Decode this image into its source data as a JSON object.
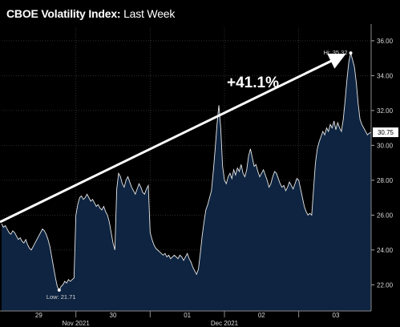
{
  "chart_data": {
    "type": "area",
    "title_main": "CBOE Volatility Index:",
    "title_sub": "Last Week",
    "ylim": [
      20.5,
      36.5
    ],
    "yticks": [
      "22.00",
      "24.00",
      "26.00",
      "28.00",
      "30.00",
      "32.00",
      "34.00",
      "36.00"
    ],
    "day_ticks": [
      "29",
      "30",
      "01",
      "02",
      "03"
    ],
    "month_labels": [
      "Nov 2021",
      "Dec 2021"
    ],
    "last_value": "30.75",
    "high_label": "Hi: 35.32",
    "low_label": "Low: 21.71",
    "change_annotation": "+41.1%",
    "series": [
      {
        "values": [
          25.5,
          25.3,
          25.4,
          25.2,
          25.0,
          24.9,
          25.1,
          25.0,
          24.8,
          24.6,
          24.7,
          24.5,
          24.4,
          24.6,
          24.3,
          24.1,
          24.0,
          24.2,
          24.4,
          24.6,
          24.8,
          25.0,
          25.2,
          25.1,
          24.9,
          24.6,
          24.2,
          23.6,
          23.0,
          22.4,
          21.9,
          21.7,
          21.9,
          22.0,
          22.2,
          22.1,
          22.3,
          22.2,
          22.3,
          22.4,
          26.0,
          26.6,
          27.0,
          27.1,
          26.9,
          27.0,
          27.2,
          27.0,
          26.8,
          26.9,
          26.7,
          26.5,
          26.6,
          26.4,
          26.3,
          26.5,
          26.2,
          26.0,
          25.6,
          25.0,
          24.4,
          24.0,
          27.5,
          28.4,
          28.2,
          27.8,
          27.6,
          28.0,
          28.2,
          27.9,
          27.6,
          27.4,
          27.2,
          27.5,
          27.8,
          27.6,
          27.3,
          27.2,
          27.5,
          27.7,
          25.0,
          24.6,
          24.3,
          24.1,
          24.0,
          23.9,
          23.8,
          23.7,
          23.8,
          23.6,
          23.7,
          23.5,
          23.6,
          23.7,
          23.6,
          23.5,
          23.7,
          23.6,
          23.4,
          23.6,
          23.8,
          23.5,
          23.3,
          23.0,
          22.8,
          22.6,
          22.9,
          23.8,
          24.8,
          25.6,
          26.3,
          26.6,
          27.0,
          27.4,
          28.5,
          29.8,
          31.2,
          32.3,
          31.0,
          28.8,
          28.0,
          27.8,
          28.2,
          28.4,
          28.1,
          28.6,
          28.3,
          28.7,
          28.5,
          28.9,
          28.4,
          28.2,
          28.6,
          29.4,
          29.8,
          29.3,
          28.8,
          28.9,
          28.5,
          28.2,
          28.4,
          28.6,
          28.3,
          28.0,
          27.6,
          27.8,
          28.2,
          28.5,
          28.4,
          28.1,
          27.8,
          27.6,
          27.7,
          27.4,
          27.6,
          27.9,
          27.7,
          27.5,
          27.8,
          28.1,
          28.0,
          27.5,
          27.0,
          26.5,
          26.2,
          26.0,
          26.1,
          26.0,
          27.5,
          29.0,
          29.8,
          30.2,
          30.5,
          30.8,
          30.6,
          31.0,
          30.8,
          31.2,
          31.0,
          31.4,
          30.9,
          31.3,
          31.0,
          30.8,
          31.5,
          32.6,
          33.8,
          34.8,
          35.3,
          34.9,
          34.5,
          33.6,
          32.4,
          31.5,
          31.2,
          31.0,
          30.8,
          30.6,
          30.7,
          30.75
        ]
      }
    ]
  }
}
